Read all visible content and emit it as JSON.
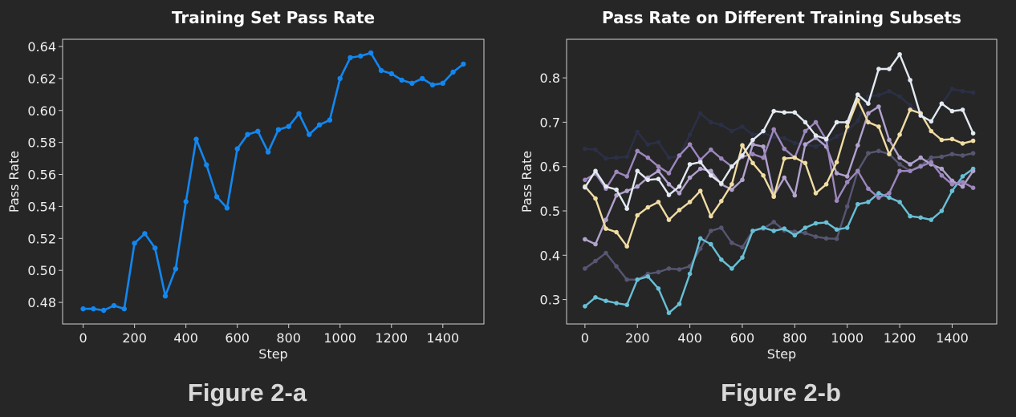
{
  "captions": {
    "left": "Figure 2-a",
    "right": "Figure 2-b"
  },
  "chart_data": [
    {
      "type": "line",
      "title": "Training Set Pass Rate",
      "xlabel": "Step",
      "ylabel": "Pass Rate",
      "xlim": [
        -80,
        1560
      ],
      "ylim": [
        0.4665,
        0.6445
      ],
      "xticks": [
        0,
        200,
        400,
        600,
        800,
        1000,
        1200,
        1400
      ],
      "yticks": [
        0.48,
        0.5,
        0.52,
        0.54,
        0.56,
        0.58,
        0.6,
        0.62,
        0.64
      ],
      "ytick_labels": [
        "0.48",
        "0.50",
        "0.52",
        "0.54",
        "0.56",
        "0.58",
        "0.60",
        "0.62",
        "0.64"
      ],
      "grid": false,
      "color": "#1287f0",
      "x": [
        0,
        40,
        80,
        120,
        160,
        200,
        240,
        280,
        320,
        360,
        400,
        440,
        480,
        520,
        560,
        600,
        640,
        680,
        720,
        760,
        800,
        840,
        880,
        920,
        960,
        1000,
        1040,
        1080,
        1120,
        1160,
        1200,
        1240,
        1280,
        1320,
        1360,
        1400,
        1440,
        1480
      ],
      "series": [
        {
          "values": [
            0.476,
            0.476,
            0.475,
            0.478,
            0.476,
            0.517,
            0.523,
            0.514,
            0.484,
            0.501,
            0.543,
            0.582,
            0.566,
            0.546,
            0.539,
            0.576,
            0.585,
            0.587,
            0.574,
            0.588,
            0.59,
            0.598,
            0.585,
            0.591,
            0.594,
            0.62,
            0.633,
            0.634,
            0.636,
            0.625,
            0.623,
            0.619,
            0.617,
            0.62,
            0.616,
            0.617,
            0.624,
            0.629
          ]
        }
      ]
    },
    {
      "type": "line",
      "title": "Pass Rate on Different Training Subsets",
      "xlabel": "Step",
      "ylabel": "Pass Rate",
      "xlim": [
        -70,
        1570
      ],
      "ylim": [
        0.245,
        0.887
      ],
      "xticks": [
        0,
        200,
        400,
        600,
        800,
        1000,
        1200,
        1400
      ],
      "yticks": [
        0.3,
        0.4,
        0.5,
        0.6,
        0.7,
        0.8
      ],
      "ytick_labels": [
        "0.3",
        "0.4",
        "0.5",
        "0.6",
        "0.7",
        "0.8"
      ],
      "grid": false,
      "x": [
        0,
        40,
        80,
        120,
        160,
        200,
        240,
        280,
        320,
        360,
        400,
        440,
        480,
        520,
        560,
        600,
        640,
        680,
        720,
        760,
        800,
        840,
        880,
        920,
        960,
        1000,
        1040,
        1080,
        1120,
        1160,
        1200,
        1240,
        1280,
        1320,
        1360,
        1400,
        1440,
        1480
      ],
      "series": [
        {
          "color": "#2b3047",
          "values": [
            0.64,
            0.638,
            0.618,
            0.62,
            0.622,
            0.678,
            0.65,
            0.655,
            0.62,
            0.623,
            0.672,
            0.72,
            0.7,
            0.694,
            0.68,
            0.69,
            0.672,
            0.676,
            0.667,
            0.664,
            0.653,
            0.65,
            0.645,
            0.655,
            0.668,
            0.68,
            0.703,
            0.758,
            0.761,
            0.77,
            0.758,
            0.738,
            0.717,
            0.702,
            0.74,
            0.775,
            0.77,
            0.767
          ]
        },
        {
          "color": "#565673",
          "values": [
            0.37,
            0.387,
            0.405,
            0.375,
            0.345,
            0.345,
            0.358,
            0.362,
            0.37,
            0.368,
            0.375,
            0.415,
            0.455,
            0.462,
            0.428,
            0.418,
            0.455,
            0.46,
            0.475,
            0.456,
            0.453,
            0.45,
            0.442,
            0.438,
            0.437,
            0.51,
            0.59,
            0.63,
            0.635,
            0.628,
            0.605,
            0.59,
            0.602,
            0.62,
            0.622,
            0.628,
            0.625,
            0.63
          ]
        },
        {
          "color": "#69c0d6",
          "values": [
            0.285,
            0.305,
            0.297,
            0.292,
            0.288,
            0.345,
            0.352,
            0.325,
            0.27,
            0.29,
            0.358,
            0.438,
            0.425,
            0.39,
            0.37,
            0.395,
            0.455,
            0.462,
            0.455,
            0.46,
            0.445,
            0.462,
            0.472,
            0.474,
            0.458,
            0.462,
            0.515,
            0.52,
            0.54,
            0.53,
            0.52,
            0.488,
            0.485,
            0.48,
            0.5,
            0.545,
            0.578,
            0.595
          ]
        },
        {
          "color": "#b2a3cf",
          "values": [
            0.436,
            0.425,
            0.48,
            0.535,
            0.545,
            0.555,
            0.575,
            0.59,
            0.56,
            0.54,
            0.575,
            0.595,
            0.59,
            0.56,
            0.548,
            0.57,
            0.65,
            0.645,
            0.535,
            0.575,
            0.535,
            0.65,
            0.665,
            0.645,
            0.585,
            0.578,
            0.648,
            0.72,
            0.735,
            0.66,
            0.62,
            0.605,
            0.62,
            0.605,
            0.595,
            0.568,
            0.555,
            0.59
          ]
        },
        {
          "color": "#9d87be",
          "values": [
            0.57,
            0.584,
            0.55,
            0.588,
            0.578,
            0.635,
            0.62,
            0.6,
            0.585,
            0.625,
            0.65,
            0.615,
            0.638,
            0.618,
            0.6,
            0.622,
            0.628,
            0.62,
            0.684,
            0.64,
            0.62,
            0.68,
            0.7,
            0.66,
            0.523,
            0.565,
            0.59,
            0.55,
            0.53,
            0.54,
            0.59,
            0.59,
            0.6,
            0.61,
            0.58,
            0.56,
            0.565,
            0.552
          ]
        },
        {
          "color": "#f1dda3",
          "values": [
            0.555,
            0.528,
            0.46,
            0.452,
            0.42,
            0.49,
            0.508,
            0.52,
            0.48,
            0.502,
            0.52,
            0.545,
            0.488,
            0.522,
            0.56,
            0.648,
            0.608,
            0.58,
            0.532,
            0.618,
            0.62,
            0.608,
            0.54,
            0.56,
            0.61,
            0.69,
            0.75,
            0.7,
            0.69,
            0.628,
            0.672,
            0.728,
            0.72,
            0.68,
            0.66,
            0.662,
            0.652,
            0.658
          ]
        },
        {
          "color": "#e4eaf2",
          "values": [
            0.553,
            0.59,
            0.555,
            0.548,
            0.505,
            0.59,
            0.57,
            0.572,
            0.536,
            0.555,
            0.605,
            0.61,
            0.58,
            0.562,
            0.6,
            0.625,
            0.66,
            0.68,
            0.725,
            0.722,
            0.722,
            0.7,
            0.67,
            0.662,
            0.7,
            0.7,
            0.762,
            0.742,
            0.82,
            0.82,
            0.853,
            0.795,
            0.715,
            0.702,
            0.742,
            0.725,
            0.728,
            0.675
          ]
        }
      ]
    }
  ]
}
